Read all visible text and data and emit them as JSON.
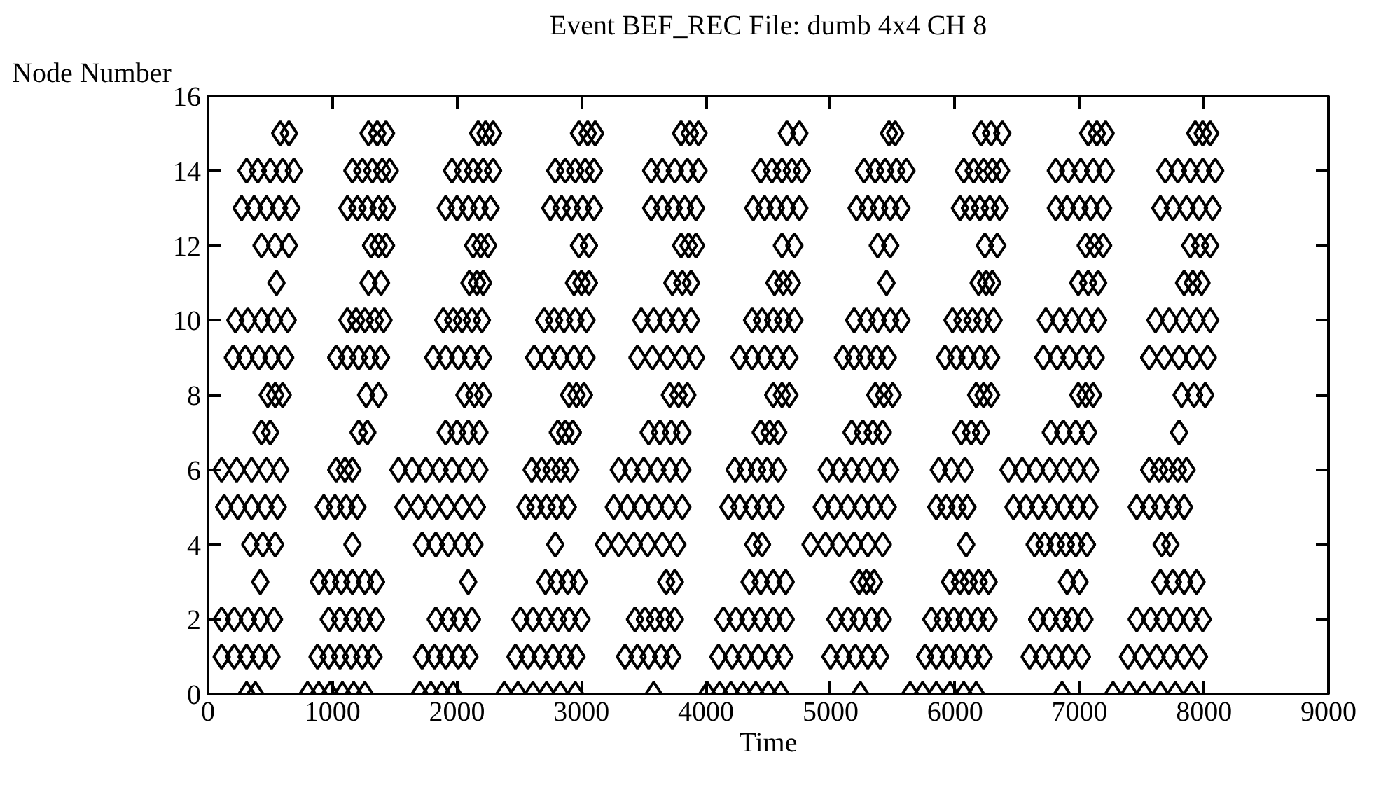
{
  "chart_data": {
    "type": "scatter",
    "title": "Event BEF_REC File: dumb 4x4 CH 8",
    "xlabel": "Time",
    "ylabel": "Node Number",
    "marker": "diamond",
    "grid": false,
    "xlim": [
      0,
      9000
    ],
    "xticks": [
      0,
      1000,
      2000,
      3000,
      4000,
      5000,
      6000,
      7000,
      8000,
      9000
    ],
    "ylim": [
      0,
      16
    ],
    "yticks": [
      0,
      2,
      4,
      6,
      8,
      10,
      12,
      14,
      16
    ],
    "series": [
      {
        "color": "#000000",
        "x": [
          580,
          650,
          1290,
          1360,
          1430,
          2170,
          2230,
          2290,
          2980,
          3050,
          3110,
          3800,
          3870,
          3940,
          4650,
          4750,
          5470,
          5520,
          6210,
          6290,
          6380,
          7070,
          7140,
          7210,
          7930,
          7990,
          8050
        ],
        "values": [
          15,
          15,
          15,
          15,
          15,
          15,
          15,
          15,
          15,
          15,
          15,
          15,
          15,
          15,
          15,
          15,
          15,
          15,
          15,
          15,
          15,
          15,
          15,
          15,
          15,
          15,
          15
        ]
      },
      {
        "color": "#000000",
        "x": [
          310,
          400,
          500,
          600,
          690,
          1160,
          1240,
          1320,
          1400,
          1460,
          1960,
          2050,
          2130,
          2210,
          2290,
          2790,
          2870,
          2950,
          3030,
          3100,
          3560,
          3650,
          3750,
          3850,
          3940,
          4440,
          4530,
          4610,
          4690,
          4770,
          5270,
          5360,
          5440,
          5530,
          5610,
          6070,
          6150,
          6230,
          6300,
          6370,
          6810,
          6910,
          7010,
          7110,
          7210,
          7690,
          7790,
          7890,
          7990,
          8090
        ],
        "values": [
          14,
          14,
          14,
          14,
          14,
          14,
          14,
          14,
          14,
          14,
          14,
          14,
          14,
          14,
          14,
          14,
          14,
          14,
          14,
          14,
          14,
          14,
          14,
          14,
          14,
          14,
          14,
          14,
          14,
          14,
          14,
          14,
          14,
          14,
          14,
          14,
          14,
          14,
          14,
          14,
          14,
          14,
          14,
          14,
          14,
          14,
          14,
          14,
          14,
          14
        ]
      },
      {
        "color": "#000000",
        "x": [
          270,
          370,
          470,
          570,
          670,
          1120,
          1200,
          1280,
          1370,
          1440,
          1910,
          2000,
          2090,
          2180,
          2270,
          2750,
          2840,
          2920,
          3010,
          3100,
          3560,
          3650,
          3740,
          3830,
          3920,
          4380,
          4470,
          4560,
          4650,
          4750,
          5210,
          5300,
          5390,
          5480,
          5570,
          6040,
          6120,
          6200,
          6280,
          6360,
          6810,
          6900,
          7000,
          7090,
          7190,
          7650,
          7750,
          7860,
          7960,
          8070
        ],
        "values": [
          13,
          13,
          13,
          13,
          13,
          13,
          13,
          13,
          13,
          13,
          13,
          13,
          13,
          13,
          13,
          13,
          13,
          13,
          13,
          13,
          13,
          13,
          13,
          13,
          13,
          13,
          13,
          13,
          13,
          13,
          13,
          13,
          13,
          13,
          13,
          13,
          13,
          13,
          13,
          13,
          13,
          13,
          13,
          13,
          13,
          13,
          13,
          13,
          13,
          13
        ]
      },
      {
        "color": "#000000",
        "x": [
          430,
          540,
          650,
          1310,
          1370,
          1430,
          2130,
          2190,
          2250,
          2980,
          3060,
          3800,
          3860,
          3920,
          4610,
          4710,
          5380,
          5480,
          6240,
          6340,
          7050,
          7120,
          7190,
          7890,
          7970,
          8050
        ],
        "values": [
          12,
          12,
          12,
          12,
          12,
          12,
          12,
          12,
          12,
          12,
          12,
          12,
          12,
          12,
          12,
          12,
          12,
          12,
          12,
          12,
          12,
          12,
          12,
          12,
          12,
          12
        ]
      },
      {
        "color": "#000000",
        "x": [
          550,
          1290,
          1390,
          2100,
          2160,
          2210,
          2940,
          3000,
          3060,
          3730,
          3810,
          3880,
          4550,
          4620,
          4690,
          5450,
          6190,
          6250,
          6300,
          6990,
          7070,
          7150,
          7840,
          7910,
          7980
        ],
        "values": [
          11,
          11,
          11,
          11,
          11,
          11,
          11,
          11,
          11,
          11,
          11,
          11,
          11,
          11,
          11,
          11,
          11,
          11,
          11,
          11,
          11,
          11,
          11,
          11,
          11
        ]
      },
      {
        "color": "#000000",
        "x": [
          220,
          320,
          430,
          530,
          640,
          1120,
          1190,
          1260,
          1340,
          1410,
          1890,
          1970,
          2040,
          2120,
          2200,
          2700,
          2780,
          2860,
          2950,
          3040,
          3480,
          3580,
          3680,
          3780,
          3880,
          4370,
          4450,
          4540,
          4620,
          4710,
          5190,
          5290,
          5380,
          5480,
          5570,
          5980,
          6060,
          6140,
          6220,
          6310,
          6730,
          6840,
          6940,
          7050,
          7150,
          7610,
          7720,
          7830,
          7940,
          8050
        ],
        "values": [
          10,
          10,
          10,
          10,
          10,
          10,
          10,
          10,
          10,
          10,
          10,
          10,
          10,
          10,
          10,
          10,
          10,
          10,
          10,
          10,
          10,
          10,
          10,
          10,
          10,
          10,
          10,
          10,
          10,
          10,
          10,
          10,
          10,
          10,
          10,
          10,
          10,
          10,
          10,
          10,
          10,
          10,
          10,
          10,
          10,
          10,
          10,
          10,
          10,
          10
        ]
      },
      {
        "color": "#000000",
        "x": [
          200,
          300,
          410,
          510,
          620,
          1030,
          1120,
          1210,
          1300,
          1390,
          1810,
          1910,
          2010,
          2110,
          2210,
          2620,
          2730,
          2830,
          2940,
          3040,
          3450,
          3570,
          3690,
          3810,
          3920,
          4270,
          4370,
          4470,
          4570,
          4670,
          5100,
          5190,
          5280,
          5370,
          5460,
          5920,
          6010,
          6100,
          6200,
          6290,
          6710,
          6820,
          6920,
          7030,
          7130,
          7560,
          7680,
          7800,
          7910,
          8030
        ],
        "values": [
          9,
          9,
          9,
          9,
          9,
          9,
          9,
          9,
          9,
          9,
          9,
          9,
          9,
          9,
          9,
          9,
          9,
          9,
          9,
          9,
          9,
          9,
          9,
          9,
          9,
          9,
          9,
          9,
          9,
          9,
          9,
          9,
          9,
          9,
          9,
          9,
          9,
          9,
          9,
          9,
          9,
          9,
          9,
          9,
          9,
          9,
          9,
          9,
          9,
          9
        ]
      },
      {
        "color": "#000000",
        "x": [
          480,
          540,
          600,
          1270,
          1370,
          2060,
          2140,
          2210,
          2900,
          2960,
          3020,
          3710,
          3780,
          3850,
          4540,
          4610,
          4670,
          5360,
          5430,
          5500,
          6170,
          6230,
          6290,
          6990,
          7050,
          7110,
          7820,
          7920,
          8010
        ],
        "values": [
          8,
          8,
          8,
          8,
          8,
          8,
          8,
          8,
          8,
          8,
          8,
          8,
          8,
          8,
          8,
          8,
          8,
          8,
          8,
          8,
          8,
          8,
          8,
          8,
          8,
          8,
          8,
          8,
          8
        ]
      },
      {
        "color": "#000000",
        "x": [
          430,
          500,
          1210,
          1280,
          1910,
          2000,
          2090,
          2180,
          2810,
          2870,
          2930,
          3540,
          3630,
          3720,
          3810,
          4440,
          4510,
          4580,
          5170,
          5260,
          5340,
          5420,
          6050,
          6130,
          6210,
          6770,
          6870,
          6970,
          7070,
          7800
        ],
        "values": [
          7,
          7,
          7,
          7,
          7,
          7,
          7,
          7,
          7,
          7,
          7,
          7,
          7,
          7,
          7,
          7,
          7,
          7,
          7,
          7,
          7,
          7,
          7,
          7,
          7,
          7,
          7,
          7,
          7,
          7
        ]
      },
      {
        "color": "#000000",
        "x": [
          110,
          230,
          350,
          470,
          580,
          1030,
          1100,
          1160,
          1530,
          1640,
          1750,
          1860,
          1960,
          2070,
          2180,
          2600,
          2680,
          2760,
          2830,
          2910,
          3300,
          3400,
          3500,
          3610,
          3710,
          3810,
          4230,
          4320,
          4410,
          4490,
          4580,
          4970,
          5070,
          5170,
          5270,
          5380,
          5480,
          5870,
          5970,
          6080,
          6430,
          6540,
          6650,
          6760,
          6870,
          6980,
          7090,
          7560,
          7640,
          7710,
          7790,
          7860
        ],
        "values": [
          6,
          6,
          6,
          6,
          6,
          6,
          6,
          6,
          6,
          6,
          6,
          6,
          6,
          6,
          6,
          6,
          6,
          6,
          6,
          6,
          6,
          6,
          6,
          6,
          6,
          6,
          6,
          6,
          6,
          6,
          6,
          6,
          6,
          6,
          6,
          6,
          6,
          6,
          6,
          6,
          6,
          6,
          6,
          6,
          6,
          6,
          6,
          6,
          6,
          6,
          6,
          6
        ]
      },
      {
        "color": "#000000",
        "x": [
          130,
          240,
          350,
          460,
          560,
          930,
          1020,
          1110,
          1200,
          1570,
          1690,
          1800,
          1920,
          2040,
          2160,
          2550,
          2630,
          2720,
          2800,
          2890,
          3260,
          3370,
          3480,
          3590,
          3700,
          3810,
          4180,
          4270,
          4370,
          4460,
          4560,
          4930,
          5030,
          5140,
          5250,
          5350,
          5460,
          5850,
          5930,
          6020,
          6100,
          6470,
          6570,
          6670,
          6770,
          6880,
          6980,
          7080,
          7460,
          7560,
          7650,
          7750,
          7840
        ],
        "values": [
          5,
          5,
          5,
          5,
          5,
          5,
          5,
          5,
          5,
          5,
          5,
          5,
          5,
          5,
          5,
          5,
          5,
          5,
          5,
          5,
          5,
          5,
          5,
          5,
          5,
          5,
          5,
          5,
          5,
          5,
          5,
          5,
          5,
          5,
          5,
          5,
          5,
          5,
          5,
          5,
          5,
          5,
          5,
          5,
          5,
          5,
          5,
          5,
          5,
          5,
          5,
          5,
          5
        ]
      },
      {
        "color": "#000000",
        "x": [
          340,
          440,
          540,
          1160,
          1720,
          1830,
          1930,
          2040,
          2140,
          2790,
          3180,
          3300,
          3420,
          3530,
          3650,
          3770,
          4380,
          4450,
          4840,
          4960,
          5070,
          5190,
          5300,
          5420,
          6090,
          6640,
          6720,
          6810,
          6890,
          6970,
          7060,
          7660,
          7730
        ],
        "values": [
          4,
          4,
          4,
          4,
          4,
          4,
          4,
          4,
          4,
          4,
          4,
          4,
          4,
          4,
          4,
          4,
          4,
          4,
          4,
          4,
          4,
          4,
          4,
          4,
          4,
          4,
          4,
          4,
          4,
          4,
          4,
          4,
          4
        ]
      },
      {
        "color": "#000000",
        "x": [
          420,
          890,
          980,
          1070,
          1160,
          1260,
          1350,
          2090,
          2710,
          2800,
          2890,
          2980,
          3680,
          3750,
          4350,
          4440,
          4540,
          4640,
          5230,
          5290,
          5350,
          5960,
          6040,
          6110,
          6190,
          6270,
          6900,
          7000,
          7650,
          7750,
          7840,
          7940
        ],
        "values": [
          3,
          3,
          3,
          3,
          3,
          3,
          3,
          3,
          3,
          3,
          3,
          3,
          3,
          3,
          3,
          3,
          3,
          3,
          3,
          3,
          3,
          3,
          3,
          3,
          3,
          3,
          3,
          3,
          3,
          3,
          3,
          3
        ]
      },
      {
        "color": "#000000",
        "x": [
          110,
          210,
          320,
          420,
          530,
          970,
          1060,
          1160,
          1250,
          1350,
          1830,
          1930,
          2020,
          2120,
          2510,
          2610,
          2710,
          2810,
          2900,
          3000,
          3430,
          3510,
          3590,
          3670,
          3750,
          4140,
          4240,
          4340,
          4440,
          4540,
          4640,
          5040,
          5140,
          5230,
          5330,
          5420,
          5810,
          5900,
          5990,
          6080,
          6180,
          6270,
          6660,
          6760,
          6860,
          6940,
          7040,
          7460,
          7570,
          7670,
          7780,
          7890,
          7990
        ],
        "values": [
          2,
          2,
          2,
          2,
          2,
          2,
          2,
          2,
          2,
          2,
          2,
          2,
          2,
          2,
          2,
          2,
          2,
          2,
          2,
          2,
          2,
          2,
          2,
          2,
          2,
          2,
          2,
          2,
          2,
          2,
          2,
          2,
          2,
          2,
          2,
          2,
          2,
          2,
          2,
          2,
          2,
          2,
          2,
          2,
          2,
          2,
          2,
          2,
          2,
          2,
          2,
          2,
          2
        ]
      },
      {
        "color": "#000000",
        "x": [
          110,
          210,
          310,
          410,
          510,
          880,
          970,
          1060,
          1150,
          1240,
          1330,
          1720,
          1820,
          1910,
          2010,
          2100,
          2470,
          2570,
          2670,
          2770,
          2870,
          2960,
          3350,
          3450,
          3540,
          3640,
          3730,
          4100,
          4210,
          4310,
          4420,
          4530,
          4630,
          5000,
          5100,
          5200,
          5300,
          5400,
          5760,
          5850,
          5950,
          6040,
          6140,
          6230,
          6600,
          6700,
          6810,
          6910,
          7020,
          7390,
          7500,
          7620,
          7730,
          7840,
          7960
        ],
        "values": [
          1,
          1,
          1,
          1,
          1,
          1,
          1,
          1,
          1,
          1,
          1,
          1,
          1,
          1,
          1,
          1,
          1,
          1,
          1,
          1,
          1,
          1,
          1,
          1,
          1,
          1,
          1,
          1,
          1,
          1,
          1,
          1,
          1,
          1,
          1,
          1,
          1,
          1,
          1,
          1,
          1,
          1,
          1,
          1,
          1,
          1,
          1,
          1,
          1,
          1,
          1,
          1,
          1,
          1,
          1
        ]
      },
      {
        "color": "#000000",
        "x": [
          310,
          380,
          800,
          890,
          980,
          1080,
          1170,
          1260,
          1700,
          1790,
          1880,
          1970,
          2380,
          2490,
          2610,
          2720,
          2830,
          2950,
          3580,
          4010,
          4110,
          4200,
          4300,
          4400,
          4500,
          4600,
          5240,
          5640,
          5740,
          5850,
          5960,
          6070,
          6170,
          6860,
          7270,
          7400,
          7520,
          7650,
          7770,
          7900
        ],
        "values": [
          0,
          0,
          0,
          0,
          0,
          0,
          0,
          0,
          0,
          0,
          0,
          0,
          0,
          0,
          0,
          0,
          0,
          0,
          0,
          0,
          0,
          0,
          0,
          0,
          0,
          0,
          0,
          0,
          0,
          0,
          0,
          0,
          0,
          0,
          0,
          0,
          0,
          0,
          0,
          0
        ]
      }
    ]
  }
}
